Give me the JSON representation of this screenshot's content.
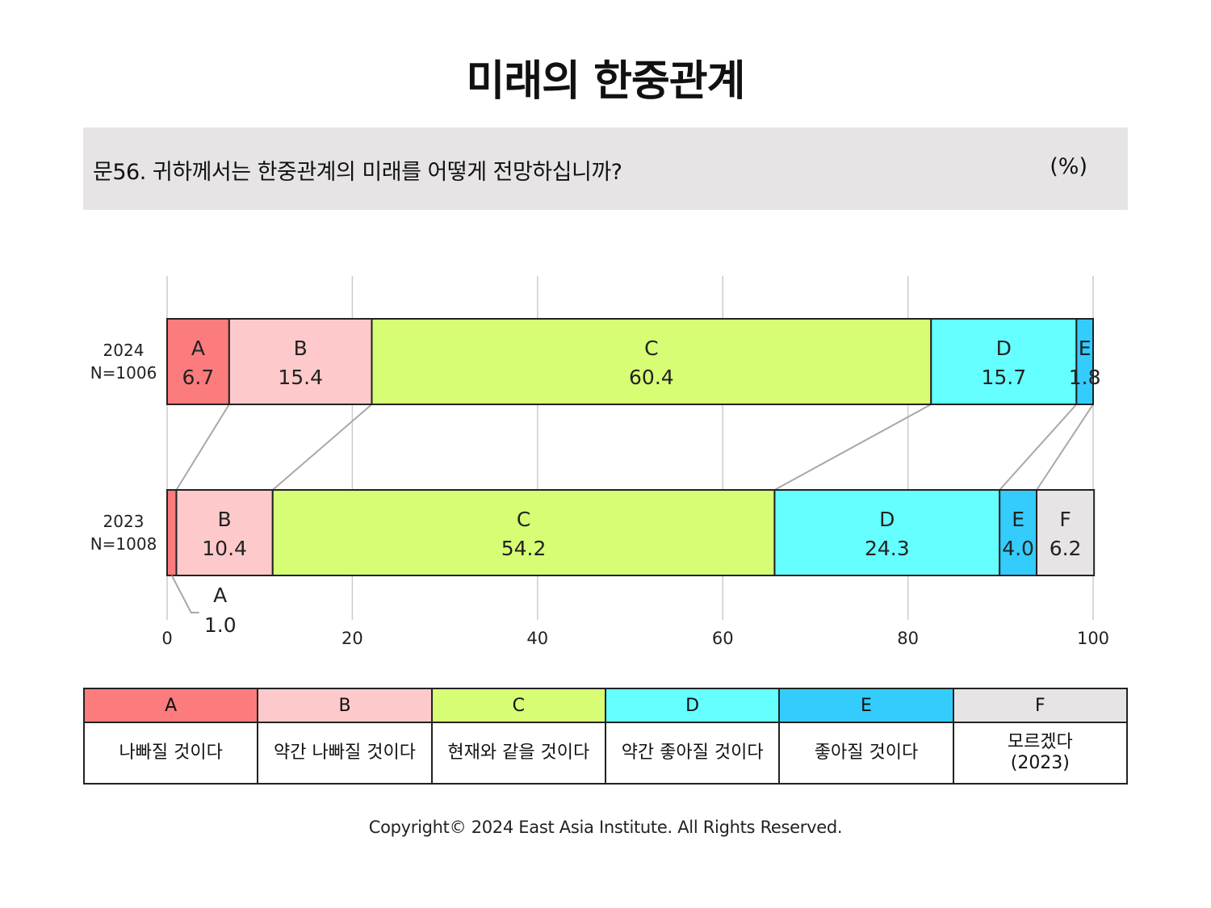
{
  "title": "미래의 한중관계",
  "question": {
    "text": "문56. 귀하께서는 한중관계의 미래를 어떻게 전망하십니까?",
    "unit": "(%)"
  },
  "chart_data": {
    "type": "bar",
    "orientation": "horizontal-stacked",
    "xlim": [
      0,
      100
    ],
    "xticks": [
      "0",
      "20",
      "40",
      "60",
      "80",
      "100"
    ],
    "grid": true,
    "rows": [
      {
        "label": "2024",
        "n": "N=1006",
        "segments": [
          {
            "key": "A",
            "value": 6.7,
            "label": "6.7"
          },
          {
            "key": "B",
            "value": 15.4,
            "label": "15.4"
          },
          {
            "key": "C",
            "value": 60.4,
            "label": "60.4"
          },
          {
            "key": "D",
            "value": 15.7,
            "label": "15.7"
          },
          {
            "key": "E",
            "value": 1.8,
            "label": "1.8"
          }
        ]
      },
      {
        "label": "2023",
        "n": "N=1008",
        "segments": [
          {
            "key": "A",
            "value": 1.0,
            "label": "1.0"
          },
          {
            "key": "B",
            "value": 10.4,
            "label": "10.4"
          },
          {
            "key": "C",
            "value": 54.2,
            "label": "54.2"
          },
          {
            "key": "D",
            "value": 24.3,
            "label": "24.3"
          },
          {
            "key": "E",
            "value": 4.0,
            "label": "4.0"
          },
          {
            "key": "F",
            "value": 6.2,
            "label": "6.2"
          }
        ]
      }
    ]
  },
  "colors": {
    "A": "#fc7b7c",
    "B": "#fec9ca",
    "C": "#d7fd75",
    "D": "#64fffe",
    "E": "#33ccfd",
    "F": "#e6e4e5"
  },
  "legend": [
    {
      "key": "A",
      "label": "나빠질 것이다"
    },
    {
      "key": "B",
      "label": "약간 나빠질 것이다"
    },
    {
      "key": "C",
      "label": "현재와 같을 것이다"
    },
    {
      "key": "D",
      "label": "약간 좋아질 것이다"
    },
    {
      "key": "E",
      "label": "좋아질 것이다"
    },
    {
      "key": "F",
      "label": "모르겠다\n(2023)"
    }
  ],
  "copyright": "Copyright© 2024 East Asia Institute. All Rights Reserved."
}
